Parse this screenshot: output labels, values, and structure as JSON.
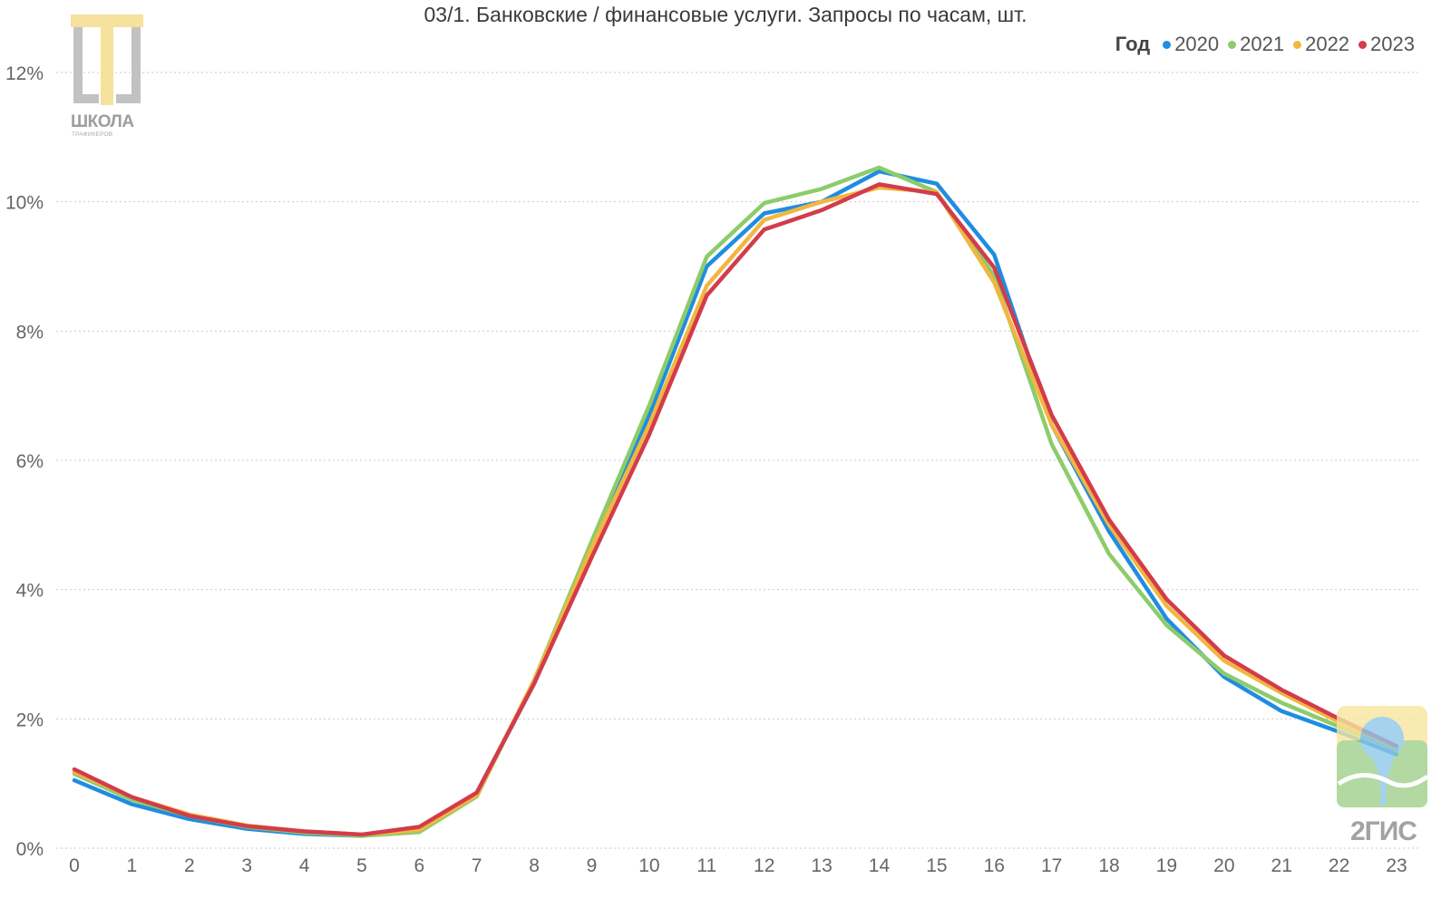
{
  "chart_data": {
    "type": "line",
    "title": "03/1. Банковские / финансовые услуги. Запросы по часам, шт.",
    "legend_title": "Год",
    "legend_position": "top-right",
    "grid": true,
    "ylim": [
      0,
      12
    ],
    "yticks": [
      "0%",
      "2%",
      "4%",
      "6%",
      "8%",
      "10%",
      "12%"
    ],
    "x": [
      0,
      1,
      2,
      3,
      4,
      5,
      6,
      7,
      8,
      9,
      10,
      11,
      12,
      13,
      14,
      15,
      16,
      17,
      18,
      19,
      20,
      21,
      22,
      23
    ],
    "series": [
      {
        "name": "2020",
        "color": "#1f8de0",
        "values": [
          1.05,
          0.68,
          0.45,
          0.3,
          0.22,
          0.19,
          0.3,
          0.85,
          2.55,
          4.65,
          6.7,
          9.0,
          9.82,
          10.0,
          10.47,
          10.28,
          9.18,
          6.55,
          4.9,
          3.55,
          2.65,
          2.12,
          1.8,
          1.45
        ]
      },
      {
        "name": "2021",
        "color": "#8ccc6a",
        "values": [
          1.15,
          0.75,
          0.5,
          0.33,
          0.24,
          0.19,
          0.25,
          0.8,
          2.6,
          4.75,
          6.85,
          9.15,
          9.98,
          10.2,
          10.53,
          10.15,
          8.85,
          6.25,
          4.55,
          3.45,
          2.7,
          2.25,
          1.88,
          1.52
        ]
      },
      {
        "name": "2022",
        "color": "#f2b640",
        "values": [
          1.18,
          0.79,
          0.52,
          0.35,
          0.26,
          0.21,
          0.28,
          0.82,
          2.6,
          4.65,
          6.55,
          8.7,
          9.72,
          10.0,
          10.22,
          10.15,
          8.75,
          6.55,
          5.0,
          3.75,
          2.9,
          2.4,
          1.95,
          1.55
        ]
      },
      {
        "name": "2023",
        "color": "#d23c4b",
        "values": [
          1.22,
          0.79,
          0.5,
          0.34,
          0.26,
          0.21,
          0.33,
          0.86,
          2.55,
          4.5,
          6.4,
          8.55,
          9.57,
          9.87,
          10.27,
          10.12,
          8.98,
          6.7,
          5.08,
          3.85,
          2.98,
          2.45,
          2.0,
          1.58
        ]
      }
    ]
  },
  "logos": {
    "school": {
      "line1": "ШКОЛА",
      "line2": "ТРАФИКЕРОВ"
    },
    "gis": "2ГИС"
  }
}
